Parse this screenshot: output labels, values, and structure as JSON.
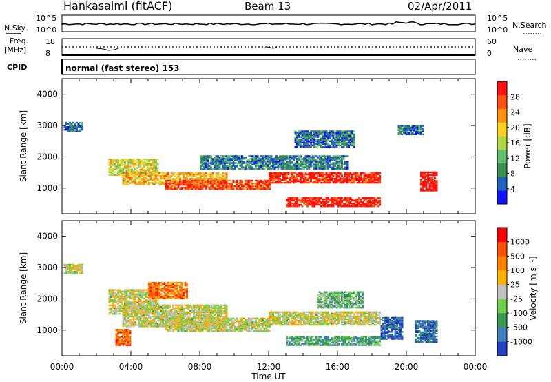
{
  "header": {
    "station": "Hankasalmi (fitACF)",
    "beam": "Beam 13",
    "date": "02/Apr/2011"
  },
  "top_panels": {
    "nsky_label": "N.Sky",
    "nsearch_label": "N.Search",
    "nsky_ticks": [
      "10^5",
      "10^0"
    ],
    "nsearch_ticks": [
      "10^5",
      "10^0"
    ],
    "freq_label_line1": "Freq.",
    "freq_label_line2": "[MHz]",
    "freq_ticks": [
      "18",
      "8"
    ],
    "nave_label": "Nave",
    "nave_ticks": [
      "60",
      "0"
    ],
    "cpid_label": "CPID",
    "cpid_value": "normal (fast stereo) 153"
  },
  "colors": {
    "velocity_scale": [
      "#2040c0",
      "#3f7fbf",
      "#3a9a50",
      "#6fd04a",
      "#c0c0c0",
      "#ffb000",
      "#ff8000",
      "#ff5000",
      "#ff0000"
    ],
    "power_scale": [
      "#1010ff",
      "#2060c0",
      "#3b9050",
      "#60c070",
      "#b0d840",
      "#ffd020",
      "#ff9010",
      "#ff5010",
      "#ff1010"
    ]
  },
  "chart_data": [
    {
      "type": "heatmap",
      "title": "",
      "xlabel": "Time UT",
      "ylabel": "Slant Range [km]",
      "xlim_hours": [
        0,
        24
      ],
      "ylim_km": [
        180,
        4500
      ],
      "x_ticks": [
        "00:00",
        "04:00",
        "08:00",
        "12:00",
        "16:00",
        "20:00",
        "00:00"
      ],
      "y_ticks": [
        1000,
        2000,
        3000,
        4000
      ],
      "colorbar": {
        "label": "Power [dB]",
        "ticks": [
          4,
          8,
          12,
          16,
          20,
          24,
          28
        ]
      },
      "regions": [
        {
          "t": [
            0.1,
            1.2
          ],
          "r": [
            2800,
            3100
          ],
          "level": 0.22
        },
        {
          "t": [
            2.7,
            5.5
          ],
          "r": [
            1400,
            1900
          ],
          "level": 0.55
        },
        {
          "t": [
            3.5,
            9.5
          ],
          "r": [
            1100,
            1500
          ],
          "level": 0.65
        },
        {
          "t": [
            6.0,
            12.0
          ],
          "r": [
            950,
            1250
          ],
          "level": 0.85
        },
        {
          "t": [
            12.0,
            18.5
          ],
          "r": [
            1150,
            1500
          ],
          "level": 0.92
        },
        {
          "t": [
            13.0,
            18.5
          ],
          "r": [
            400,
            700
          ],
          "level": 0.95
        },
        {
          "t": [
            8.0,
            16.5
          ],
          "r": [
            1600,
            2050
          ],
          "level": 0.25
        },
        {
          "t": [
            13.5,
            17.0
          ],
          "r": [
            2300,
            2800
          ],
          "level": 0.2
        },
        {
          "t": [
            20.8,
            21.8
          ],
          "r": [
            900,
            1500
          ],
          "level": 1.0
        },
        {
          "t": [
            19.5,
            21.0
          ],
          "r": [
            2700,
            3000
          ],
          "level": 0.2
        }
      ]
    },
    {
      "type": "heatmap",
      "title": "",
      "xlabel": "Time UT",
      "ylabel": "Slant Range [km]",
      "xlim_hours": [
        0,
        24
      ],
      "ylim_km": [
        180,
        4500
      ],
      "x_ticks": [
        "00:00",
        "04:00",
        "08:00",
        "12:00",
        "16:00",
        "20:00",
        "00:00"
      ],
      "y_ticks": [
        1000,
        2000,
        3000,
        4000
      ],
      "colorbar": {
        "label": "Velocity [m s⁻¹]",
        "ticks": [
          1000,
          500,
          100,
          25,
          -25,
          -100,
          -500,
          -1000
        ]
      },
      "regions": [
        {
          "t": [
            0.1,
            1.2
          ],
          "r": [
            2800,
            3100
          ],
          "level": 0.5
        },
        {
          "t": [
            2.7,
            5.5
          ],
          "r": [
            1500,
            2300
          ],
          "level": 0.5
        },
        {
          "t": [
            3.5,
            9.5
          ],
          "r": [
            1100,
            1800
          ],
          "level": 0.5
        },
        {
          "t": [
            6.0,
            12.0
          ],
          "r": [
            950,
            1400
          ],
          "level": 0.5
        },
        {
          "t": [
            12.0,
            18.5
          ],
          "r": [
            1150,
            1600
          ],
          "level": 0.5
        },
        {
          "t": [
            13.0,
            18.5
          ],
          "r": [
            500,
            800
          ],
          "level": 0.3
        },
        {
          "t": [
            5.0,
            7.2
          ],
          "r": [
            2000,
            2500
          ],
          "level": 0.75
        },
        {
          "t": [
            3.1,
            4.0
          ],
          "r": [
            500,
            1000
          ],
          "level": 0.8
        },
        {
          "t": [
            14.8,
            17.5
          ],
          "r": [
            1700,
            2200
          ],
          "level": 0.35
        },
        {
          "t": [
            18.5,
            19.8
          ],
          "r": [
            700,
            1400
          ],
          "level": 0.1
        },
        {
          "t": [
            20.5,
            21.8
          ],
          "r": [
            600,
            1300
          ],
          "level": 0.15
        }
      ]
    }
  ]
}
